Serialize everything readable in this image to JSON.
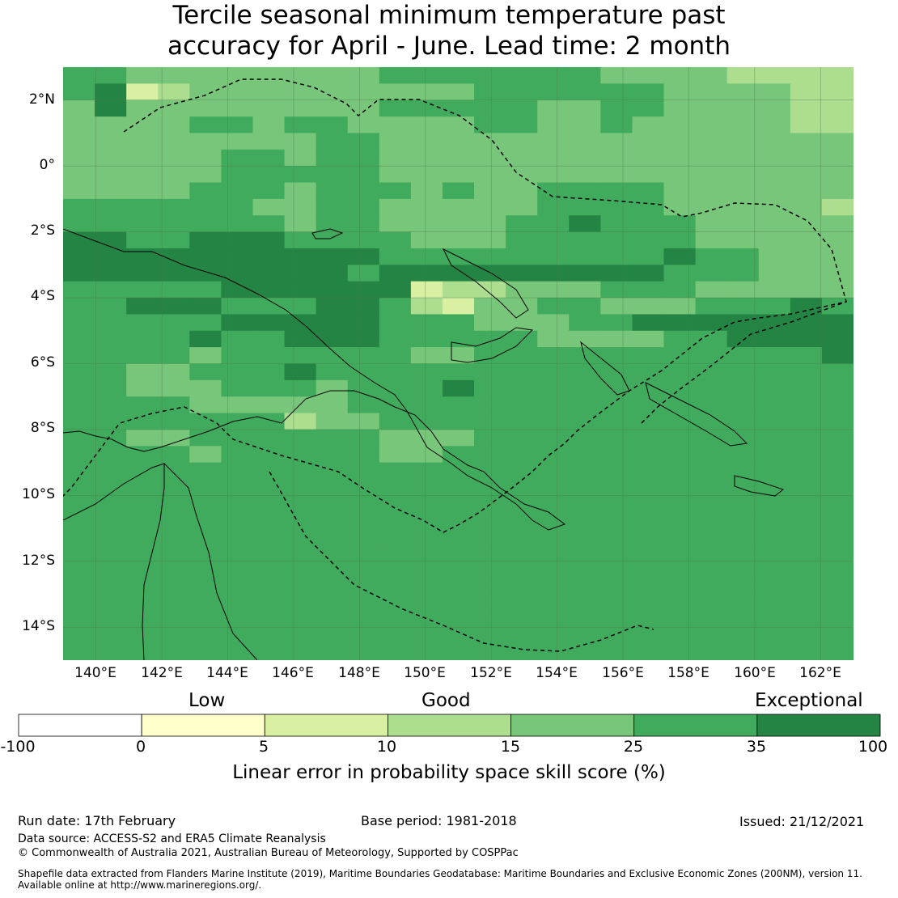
{
  "title": {
    "line1": "Tercile seasonal minimum temperature past",
    "line2": "accuracy for April - June. Lead time: 2 month"
  },
  "lat_labels": [
    "2°N",
    "0°",
    "2°S",
    "4°S",
    "6°S",
    "8°S",
    "10°S",
    "12°S",
    "14°S"
  ],
  "lon_labels": [
    "140°E",
    "142°E",
    "144°E",
    "146°E",
    "148°E",
    "150°E",
    "152°E",
    "154°E",
    "156°E",
    "158°E",
    "160°E",
    "162°E"
  ],
  "legend": {
    "categories": [
      "Low",
      "Good",
      "Exceptional"
    ],
    "ticks": [
      "-100",
      "0",
      "5",
      "10",
      "15",
      "25",
      "35",
      "100"
    ],
    "bins": [
      {
        "from": -100,
        "to": 0,
        "color": "#ffffff"
      },
      {
        "from": 0,
        "to": 5,
        "color": "#ffffcc"
      },
      {
        "from": 5,
        "to": 10,
        "color": "#d9f0a3"
      },
      {
        "from": 10,
        "to": 15,
        "color": "#addd8e"
      },
      {
        "from": 15,
        "to": 25,
        "color": "#78c679"
      },
      {
        "from": 25,
        "to": 35,
        "color": "#41ab5d"
      },
      {
        "from": 35,
        "to": 100,
        "color": "#238443"
      }
    ],
    "label": "Linear error in probability space skill score (%)"
  },
  "footer": {
    "run_date": "Run date: 17th February",
    "base_period": "Base period: 1981-2018",
    "issued": "Issued: 21/12/2021",
    "data_source": "Data source: ACCESS-S2 and ERA5 Climate Reanalysis",
    "copyright": "© Commonwealth of Australia 2021, Australian Bureau of Meteorology, Supported by COSPPac",
    "shapefile_line1": "Shapefile data extracted from Flanders Marine Institute (2019), Maritime Boundaries Geodatabase: Maritime Boundaries and Exclusive Economic Zones (200NM), version 11.",
    "shapefile_line2": "Available online at http://www.marineregions.org/."
  },
  "map": {
    "region": {
      "lon": [
        139,
        163
      ],
      "lat": [
        -15,
        3
      ]
    },
    "grid_levels": [
      "5544444444555555544443333",
      "5623444444444555555444433",
      "4644444444555554455444433",
      "4444554554444554454444433",
      "4444444455444444444444444",
      "4444455455444444444444444",
      "4444455555444444444444444",
      "4444555455545445555444444",
      "5555554455444445555444443",
      "5555555455444455655544444",
      "6655666555544455555544444",
      "6666666666555555555655444",
      "6666666665666666666555444",
      "5555566666623344455544444",
      "5566655566532445544455565",
      "5555566666555444556666666",
      "5555655666555554444556666",
      "5555455555544555555555556",
      "5544555655555555555555555",
      "5544455545556555555555555",
      "5555444445555555555555555",
      "5555555344555555555555555",
      "5544555555444555555555555",
      "5555455555445555555555555",
      "5555555555555555555555555",
      "5555555555555555555555555",
      "5555555555555555555555555",
      "5555555555555555555555555",
      "5555555555555555555555555",
      "5555555555555555555555555",
      "5555555555555555555555555",
      "5555555555555555555555555",
      "5555555555555555555555555",
      "5555555555555555555555555",
      "5555555555555555555555555",
      "5555555555555555555555555"
    ]
  }
}
